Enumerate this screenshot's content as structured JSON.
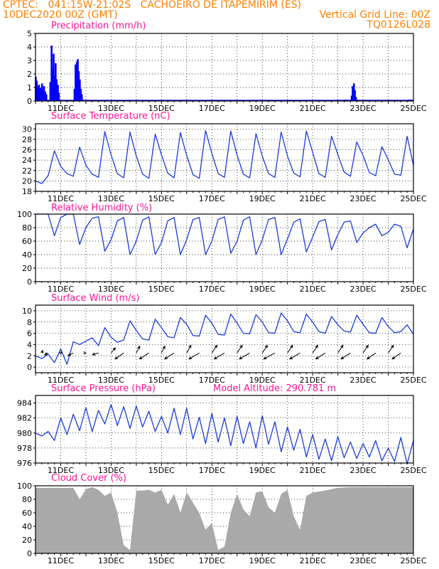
{
  "header": {
    "line1_left": "CPTEC:   041:15W-21:02S   CACHOEIRO DE ITAPEMIRIM (ES)",
    "line2_left": "10DEC2020 00Z (GMT)",
    "line2_right": "Vertical Grid Line: 00Z",
    "line3_right": "TQ0126L028"
  },
  "x_axis": {
    "ticks": [
      "11DEC",
      "13DEC",
      "15DEC",
      "17DEC",
      "19DEC",
      "21DEC",
      "23DEC",
      "25DEC"
    ],
    "range_days": [
      10,
      25
    ]
  },
  "chart_data": [
    {
      "id": "precip",
      "type": "bar",
      "title": "Precipitation (mm/h)",
      "ylim": [
        0,
        5
      ],
      "yticks": [
        0,
        1,
        2,
        3,
        4,
        5
      ],
      "color": "#0000ff",
      "x": [
        10.0,
        10.04,
        10.08,
        10.13,
        10.17,
        10.21,
        10.25,
        10.29,
        10.33,
        10.38,
        10.42,
        10.58,
        10.63,
        10.67,
        10.71,
        10.75,
        10.79,
        10.83,
        10.88,
        10.92,
        11.54,
        11.58,
        11.63,
        11.67,
        11.71,
        11.75,
        11.79,
        11.83,
        22.29,
        22.33,
        22.54,
        22.58,
        22.63,
        22.67,
        22.71,
        22.75,
        24.83,
        24.88
      ],
      "values": [
        1.8,
        1.5,
        1.1,
        1.2,
        0.9,
        1.0,
        1.3,
        0.8,
        1.1,
        0.7,
        0.5,
        1.4,
        4.1,
        2.4,
        3.5,
        1.9,
        2.8,
        1.6,
        1.2,
        0.6,
        0.9,
        2.7,
        2.9,
        3.1,
        2.2,
        1.6,
        0.9,
        0.5,
        0.1,
        0.1,
        0.4,
        1.1,
        1.3,
        0.8,
        0.3,
        0.1,
        0.1,
        0.1
      ]
    },
    {
      "id": "temp",
      "type": "line",
      "title": "Surface Temperature (nC)",
      "ylim": [
        18,
        31
      ],
      "yticks": [
        18,
        20,
        22,
        24,
        26,
        28,
        30
      ],
      "color": "#1c3bdc",
      "x": [
        10.0,
        10.25,
        10.5,
        10.75,
        11.0,
        11.25,
        11.5,
        11.75,
        12.0,
        12.25,
        12.5,
        12.75,
        13.0,
        13.25,
        13.5,
        13.75,
        14.0,
        14.25,
        14.5,
        14.75,
        15.0,
        15.25,
        15.5,
        15.75,
        16.0,
        16.25,
        16.5,
        16.75,
        17.0,
        17.25,
        17.5,
        17.75,
        18.0,
        18.25,
        18.5,
        18.75,
        19.0,
        19.25,
        19.5,
        19.75,
        20.0,
        20.25,
        20.5,
        20.75,
        21.0,
        21.25,
        21.5,
        21.75,
        22.0,
        22.25,
        22.5,
        22.75,
        23.0,
        23.25,
        23.5,
        23.75,
        24.0,
        24.25,
        24.5,
        24.75,
        25.0
      ],
      "values": [
        20.0,
        19.5,
        21.0,
        25.8,
        22.8,
        21.4,
        20.9,
        26.5,
        23.0,
        21.3,
        20.7,
        29.5,
        25.0,
        21.4,
        20.6,
        29.4,
        24.8,
        21.3,
        20.5,
        29.0,
        25.0,
        21.5,
        20.6,
        29.3,
        24.9,
        21.2,
        20.5,
        29.7,
        25.3,
        21.4,
        20.7,
        29.6,
        25.0,
        21.3,
        20.6,
        29.1,
        24.8,
        21.4,
        20.7,
        29.4,
        24.8,
        21.5,
        20.8,
        29.6,
        25.5,
        21.4,
        20.7,
        28.6,
        25.1,
        21.7,
        20.9,
        27.5,
        24.9,
        21.6,
        21.0,
        26.6,
        24.1,
        21.3,
        21.1,
        28.6,
        23.0
      ]
    },
    {
      "id": "rh",
      "type": "line",
      "title": "Relative Humidity (%)",
      "ylim": [
        0,
        100
      ],
      "yticks": [
        0,
        20,
        40,
        60,
        80,
        100
      ],
      "color": "#1c3bdc",
      "x": [
        10.0,
        10.25,
        10.5,
        10.75,
        11.0,
        11.25,
        11.5,
        11.75,
        12.0,
        12.25,
        12.5,
        12.75,
        13.0,
        13.25,
        13.5,
        13.75,
        14.0,
        14.25,
        14.5,
        14.75,
        15.0,
        15.25,
        15.5,
        15.75,
        16.0,
        16.25,
        16.5,
        16.75,
        17.0,
        17.25,
        17.5,
        17.75,
        18.0,
        18.25,
        18.5,
        18.75,
        19.0,
        19.25,
        19.5,
        19.75,
        20.0,
        20.25,
        20.5,
        20.75,
        21.0,
        21.25,
        21.5,
        21.75,
        22.0,
        22.25,
        22.5,
        22.75,
        23.0,
        23.25,
        23.5,
        23.75,
        24.0,
        24.25,
        24.5,
        24.75,
        25.0
      ],
      "values": [
        100,
        100,
        100,
        68,
        95,
        100,
        100,
        55,
        80,
        94,
        96,
        45,
        62,
        90,
        95,
        40,
        60,
        91,
        96,
        40,
        58,
        90,
        95,
        40,
        62,
        92,
        95,
        40,
        60,
        92,
        96,
        42,
        60,
        91,
        96,
        40,
        62,
        92,
        95,
        40,
        63,
        88,
        93,
        44,
        66,
        89,
        92,
        47,
        70,
        88,
        90,
        58,
        72,
        80,
        85,
        68,
        73,
        85,
        82,
        50,
        78
      ]
    },
    {
      "id": "wind",
      "type": "line",
      "title": "Surface Wind (m/s)",
      "ylim": [
        -1,
        11
      ],
      "yticks": [
        0,
        2,
        4,
        6,
        8,
        10
      ],
      "color": "#1c3bdc",
      "x": [
        10.0,
        10.25,
        10.5,
        10.75,
        11.0,
        11.25,
        11.5,
        11.75,
        12.0,
        12.25,
        12.5,
        12.75,
        13.0,
        13.25,
        13.5,
        13.75,
        14.0,
        14.25,
        14.5,
        14.75,
        15.0,
        15.25,
        15.5,
        15.75,
        16.0,
        16.25,
        16.5,
        16.75,
        17.0,
        17.25,
        17.5,
        17.75,
        18.0,
        18.25,
        18.5,
        18.75,
        19.0,
        19.25,
        19.5,
        19.75,
        20.0,
        20.25,
        20.5,
        20.75,
        21.0,
        21.25,
        21.5,
        21.75,
        22.0,
        22.25,
        22.5,
        22.75,
        23.0,
        23.25,
        23.5,
        23.75,
        24.0,
        24.25,
        24.5,
        24.75,
        25.0
      ],
      "values": [
        2.0,
        1.5,
        2.3,
        0.8,
        3.2,
        0.5,
        4.5,
        4.0,
        4.6,
        5.2,
        3.8,
        7.0,
        5.3,
        4.4,
        4.8,
        8.2,
        6.5,
        5.0,
        4.8,
        8.5,
        7.0,
        5.4,
        5.2,
        8.8,
        7.6,
        5.6,
        5.5,
        9.2,
        7.8,
        5.8,
        5.7,
        9.4,
        7.8,
        6.0,
        5.9,
        9.3,
        8.0,
        6.1,
        6.0,
        9.6,
        8.2,
        6.3,
        6.1,
        9.4,
        8.0,
        6.3,
        6.0,
        9.0,
        7.5,
        6.4,
        6.2,
        9.2,
        7.6,
        6.1,
        6.0,
        8.8,
        7.2,
        6.1,
        6.3,
        7.5,
        5.8
      ],
      "vectors": {
        "x": [
          10.25,
          10.5,
          11.0,
          11.5,
          12.0,
          12.5,
          13.0,
          13.5,
          14.0,
          14.5,
          15.0,
          15.5,
          16.0,
          16.5,
          17.0,
          17.5,
          18.0,
          18.5,
          19.0,
          19.5,
          20.0,
          20.5,
          21.0,
          21.5,
          22.0,
          22.5,
          23.0,
          23.5,
          24.0,
          24.5
        ],
        "u": [
          0.5,
          -2.0,
          0.5,
          -3.0,
          0.0,
          -3.5,
          2.5,
          -5.0,
          2.0,
          -5.5,
          2.0,
          -5.5,
          2.5,
          -6.0,
          3.0,
          -6.0,
          3.0,
          -6.0,
          3.0,
          -6.5,
          3.0,
          -6.0,
          3.0,
          -5.5,
          3.0,
          -5.5,
          3.0,
          -5.0,
          3.0,
          -5.0
        ],
        "v": [
          1.5,
          -1.0,
          0.5,
          -1.5,
          0.0,
          -1.0,
          3.0,
          -3.5,
          4.0,
          -3.5,
          4.0,
          -3.5,
          4.5,
          -3.5,
          4.5,
          -3.5,
          4.5,
          -3.5,
          4.5,
          -3.5,
          4.5,
          -3.5,
          4.5,
          -3.5,
          4.5,
          -3.5,
          4.5,
          -3.5,
          4.5,
          -3.5
        ]
      }
    },
    {
      "id": "pres",
      "type": "line",
      "title": "Surface Pressure (hPa)",
      "annotation": "Model Altitude: 290.781 m",
      "ylim": [
        976,
        985
      ],
      "yticks": [
        976,
        978,
        980,
        982,
        984
      ],
      "color": "#1c3bdc",
      "x": [
        10.0,
        10.25,
        10.5,
        10.75,
        11.0,
        11.25,
        11.5,
        11.75,
        12.0,
        12.25,
        12.5,
        12.75,
        13.0,
        13.25,
        13.5,
        13.75,
        14.0,
        14.25,
        14.5,
        14.75,
        15.0,
        15.25,
        15.5,
        15.75,
        16.0,
        16.25,
        16.5,
        16.75,
        17.0,
        17.25,
        17.5,
        17.75,
        18.0,
        18.25,
        18.5,
        18.75,
        19.0,
        19.25,
        19.5,
        19.75,
        20.0,
        20.25,
        20.5,
        20.75,
        21.0,
        21.25,
        21.5,
        21.75,
        22.0,
        22.25,
        22.5,
        22.75,
        23.0,
        23.25,
        23.5,
        23.75,
        24.0,
        24.25,
        24.5,
        24.75,
        25.0
      ],
      "values": [
        980.0,
        979.6,
        980.2,
        979.0,
        982.0,
        979.8,
        982.5,
        980.3,
        983.4,
        980.2,
        983.0,
        981.2,
        983.8,
        981.0,
        983.5,
        980.6,
        983.6,
        980.8,
        982.9,
        980.2,
        982.2,
        980.0,
        983.3,
        979.8,
        983.3,
        979.2,
        982.1,
        978.6,
        982.6,
        978.8,
        982.0,
        978.3,
        982.2,
        978.6,
        981.5,
        978.0,
        982.3,
        978.5,
        981.5,
        977.5,
        980.8,
        977.7,
        980.5,
        976.8,
        979.8,
        976.5,
        979.2,
        976.3,
        979.5,
        976.7,
        978.8,
        976.6,
        978.6,
        976.8,
        979.0,
        976.3,
        978.0,
        976.2,
        979.4,
        975.9,
        979.0
      ]
    },
    {
      "id": "cloud",
      "type": "area",
      "title": "Cloud Cover (%)",
      "ylim": [
        0,
        100
      ],
      "yticks": [
        0,
        20,
        40,
        60,
        80,
        100
      ],
      "color": "#a9a9a9",
      "x": [
        10.0,
        10.5,
        11.0,
        11.25,
        11.5,
        11.75,
        12.0,
        12.25,
        12.5,
        12.75,
        13.0,
        13.25,
        13.5,
        13.75,
        14.0,
        14.25,
        14.5,
        14.75,
        15.0,
        15.25,
        15.5,
        15.75,
        16.0,
        16.25,
        16.5,
        16.75,
        17.0,
        17.25,
        17.5,
        17.75,
        18.0,
        18.25,
        18.5,
        18.75,
        19.0,
        19.25,
        19.5,
        19.75,
        20.0,
        20.25,
        20.5,
        20.75,
        21.0,
        21.5,
        22.0,
        22.5,
        23.0,
        23.5,
        24.0,
        24.5,
        25.0
      ],
      "values": [
        97,
        97,
        97,
        97,
        97,
        80,
        95,
        98,
        94,
        85,
        90,
        60,
        12,
        5,
        93,
        93,
        94,
        90,
        94,
        72,
        88,
        60,
        90,
        75,
        60,
        35,
        45,
        5,
        10,
        60,
        88,
        65,
        55,
        90,
        92,
        68,
        60,
        88,
        94,
        55,
        35,
        85,
        90,
        93,
        97,
        98,
        98,
        98,
        98,
        98,
        98
      ]
    }
  ]
}
